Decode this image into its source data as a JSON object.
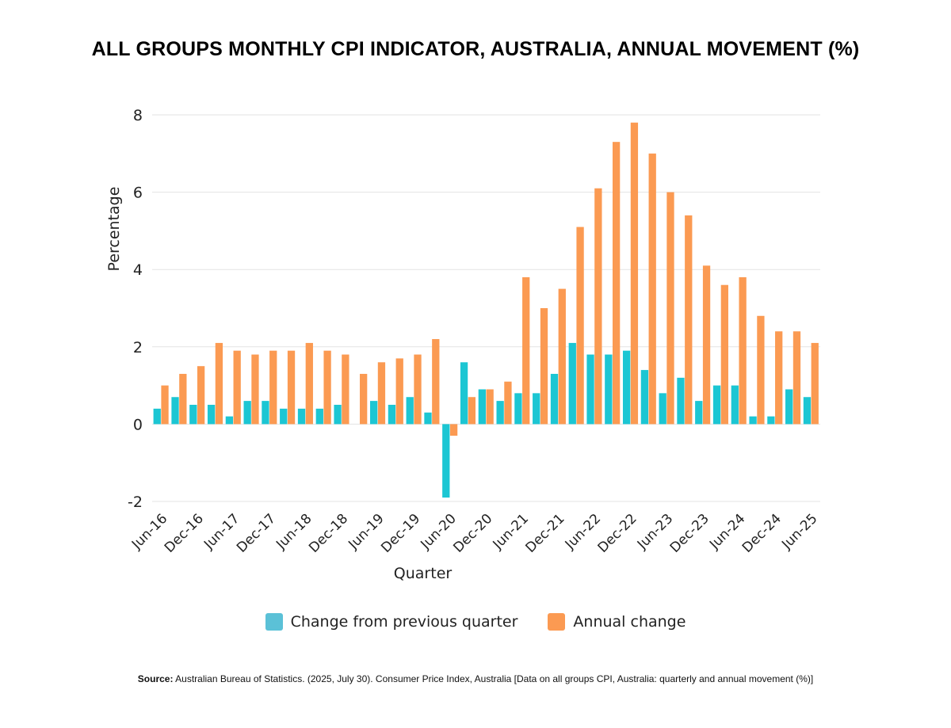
{
  "chart_data": {
    "type": "bar",
    "title": "ALL GROUPS MONTHLY CPI INDICATOR, AUSTRALIA, ANNUAL MOVEMENT (%)",
    "xlabel": "Quarter",
    "ylabel": "Percentage",
    "ylim": [
      -2,
      8
    ],
    "yticks": [
      -2,
      0,
      2,
      4,
      6,
      8
    ],
    "grid": true,
    "legend_position": "bottom",
    "categories": [
      "Jun-16",
      "Sep-16",
      "Dec-16",
      "Mar-17",
      "Jun-17",
      "Sep-17",
      "Dec-17",
      "Mar-18",
      "Jun-18",
      "Sep-18",
      "Dec-18",
      "Mar-19",
      "Jun-19",
      "Sep-19",
      "Dec-19",
      "Mar-20",
      "Jun-20",
      "Sep-20",
      "Dec-20",
      "Mar-21",
      "Jun-21",
      "Sep-21",
      "Dec-21",
      "Mar-22",
      "Jun-22",
      "Sep-22",
      "Dec-22",
      "Mar-23",
      "Jun-23",
      "Sep-23",
      "Dec-23",
      "Mar-24",
      "Jun-24",
      "Sep-24",
      "Dec-24",
      "Mar-25",
      "Jun-25"
    ],
    "tick_labels_shown": [
      "Jun-16",
      "Dec-16",
      "Jun-17",
      "Dec-17",
      "Jun-18",
      "Dec-18",
      "Jun-19",
      "Dec-19",
      "Jun-20",
      "Dec-20",
      "Jun-21",
      "Dec-21",
      "Jun-22",
      "Dec-22",
      "Jun-23",
      "Dec-23",
      "Jun-24",
      "Dec-24",
      "Jun-25"
    ],
    "series": [
      {
        "name": "Change from previous quarter",
        "color": "#1cc6d3",
        "legend_color": "#5bc1d7",
        "values": [
          0.4,
          0.7,
          0.5,
          0.5,
          0.2,
          0.6,
          0.6,
          0.4,
          0.4,
          0.4,
          0.5,
          0.0,
          0.6,
          0.5,
          0.7,
          0.3,
          -1.9,
          1.6,
          0.9,
          0.6,
          0.8,
          0.8,
          1.3,
          2.1,
          1.8,
          1.8,
          1.9,
          1.4,
          0.8,
          1.2,
          0.6,
          1.0,
          1.0,
          0.2,
          0.2,
          0.9,
          0.7
        ]
      },
      {
        "name": "Annual change",
        "color": "#fb9a52",
        "legend_color": "#fb9a52",
        "values": [
          1.0,
          1.3,
          1.5,
          2.1,
          1.9,
          1.8,
          1.9,
          1.9,
          2.1,
          1.9,
          1.8,
          1.3,
          1.6,
          1.7,
          1.8,
          2.2,
          -0.3,
          0.7,
          0.9,
          1.1,
          3.8,
          3.0,
          3.5,
          5.1,
          6.1,
          7.3,
          7.8,
          7.0,
          6.0,
          5.4,
          4.1,
          3.6,
          3.8,
          2.8,
          2.4,
          2.4,
          2.1
        ]
      }
    ]
  },
  "source": {
    "label": "Source:",
    "text": " Australian Bureau of Statistics. (2025, July 30). Consumer Price Index, Australia [Data on all groups CPI, Australia: quarterly and annual movement (%)]"
  }
}
